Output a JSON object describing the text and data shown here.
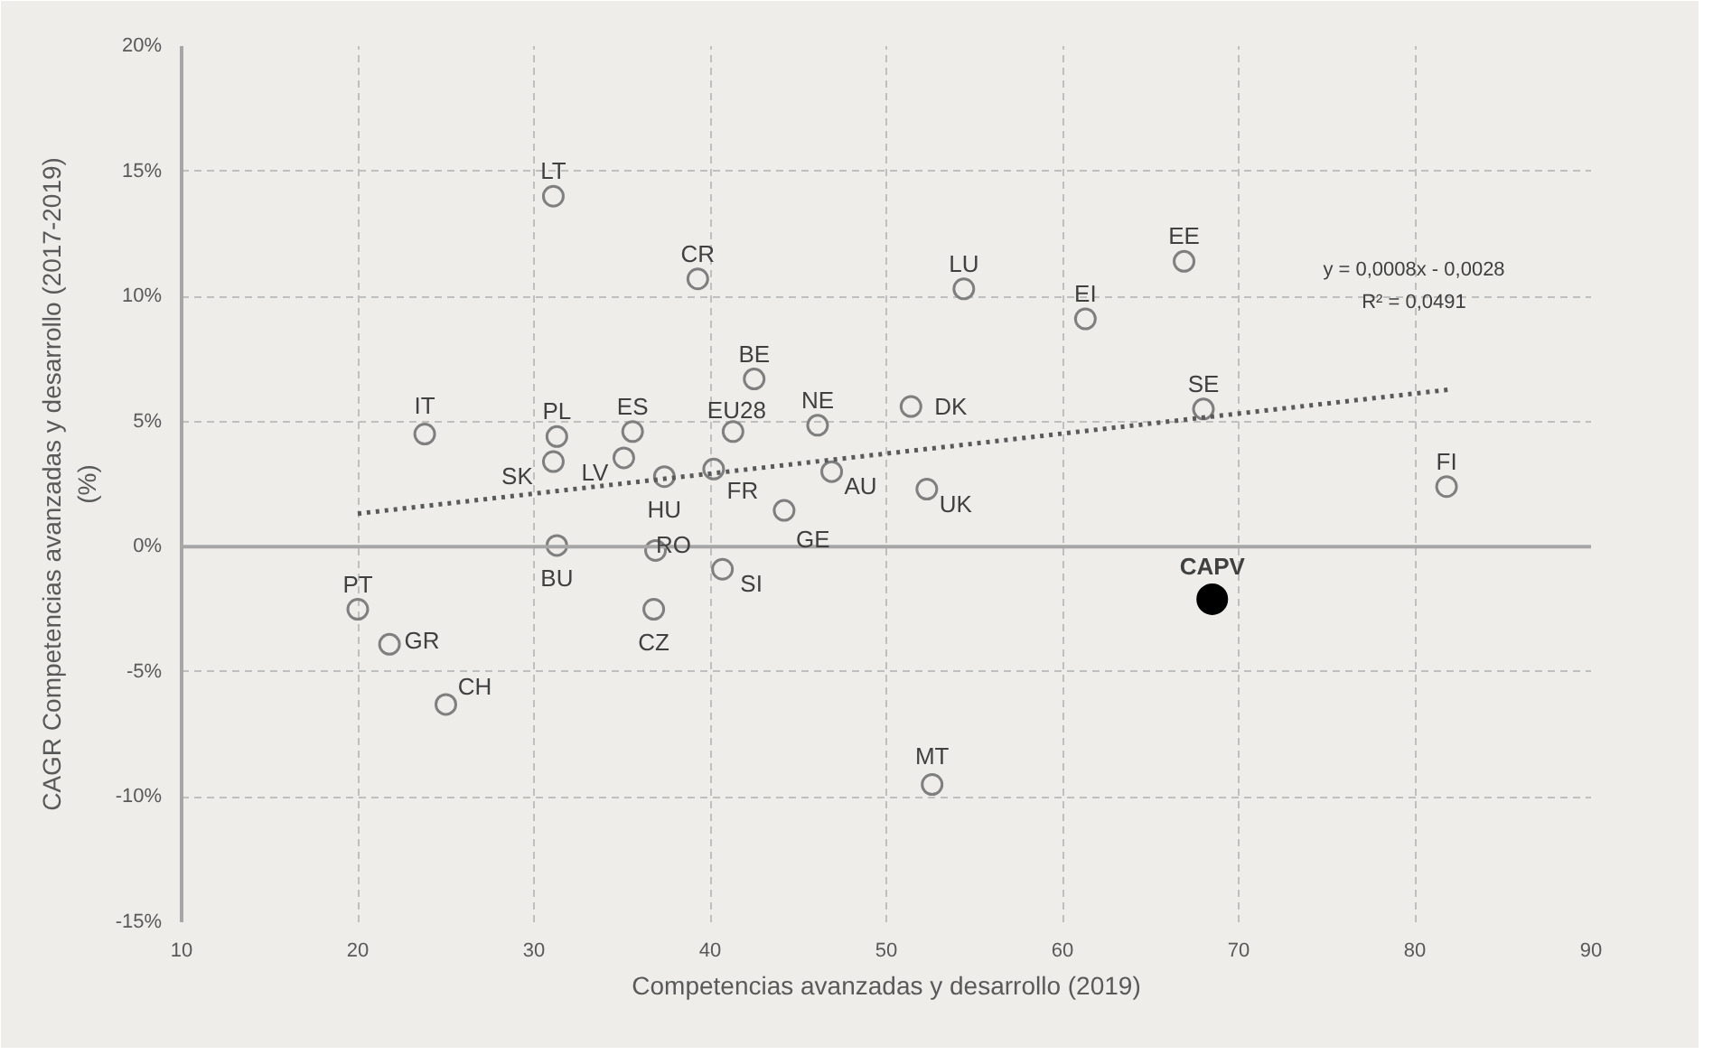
{
  "chart_data": {
    "type": "scatter",
    "xlabel": "Competencias avanzadas y desarrollo (2019)",
    "ylabel": "CAGR Competencias avanzadas y desarrollo (2017-2019)\n(%)",
    "xlim": [
      10,
      90
    ],
    "xticks": [
      10,
      20,
      30,
      40,
      50,
      60,
      70,
      80,
      90
    ],
    "ylim": [
      -15,
      20
    ],
    "yticks": [
      {
        "value": -15,
        "label": "-15%"
      },
      {
        "value": -10,
        "label": "-10%"
      },
      {
        "value": -5,
        "label": "-5%"
      },
      {
        "value": 0,
        "label": "0%"
      },
      {
        "value": 5,
        "label": "5%"
      },
      {
        "value": 10,
        "label": "10%"
      },
      {
        "value": 15,
        "label": "15%"
      },
      {
        "value": 20,
        "label": "20%"
      }
    ],
    "grid": true,
    "marker": "circle",
    "series": [
      {
        "color": "#7f7f7f",
        "x": [
          31.1,
          39.3,
          54.4,
          61.3,
          66.9,
          42.5,
          46.1,
          51.4,
          68.0,
          81.8,
          46.9,
          52.3,
          44.2,
          23.8,
          31.3,
          35.6,
          31.1,
          35.1,
          37.4,
          41.3,
          40.2,
          31.3,
          36.9,
          40.7,
          36.8,
          20.0,
          21.8,
          25.0,
          52.6
        ],
        "values": [
          14.0,
          10.7,
          10.3,
          9.1,
          11.4,
          6.7,
          4.85,
          5.6,
          5.5,
          2.4,
          3.0,
          2.3,
          1.45,
          4.5,
          4.4,
          4.6,
          3.4,
          3.55,
          2.8,
          4.6,
          3.1,
          0.05,
          -0.15,
          -0.9,
          -2.5,
          -2.5,
          -3.9,
          -6.3,
          -9.5
        ]
      },
      {
        "color": "#000000",
        "x": [
          68.5
        ],
        "values": [
          -2.1
        ]
      },
      {
        "type": "line",
        "color": "#595959",
        "line_style": "dotted",
        "marker": "none",
        "x": [
          20,
          82
        ],
        "values": [
          1.32,
          6.28
        ]
      }
    ],
    "ref_lines": [
      {
        "axis": "y",
        "value": 0,
        "color": "#a6a6a6"
      }
    ],
    "annotations": [
      {
        "text": "LT",
        "x": 31.1,
        "y": 14.0
      },
      {
        "text": "CR",
        "x": 39.3,
        "y": 10.7
      },
      {
        "text": "LU",
        "x": 54.4,
        "y": 10.3
      },
      {
        "text": "EI",
        "x": 61.3,
        "y": 9.1
      },
      {
        "text": "EE",
        "x": 66.9,
        "y": 11.4
      },
      {
        "text": "BE",
        "x": 42.5,
        "y": 6.7
      },
      {
        "text": "NE",
        "x": 46.1,
        "y": 4.85
      },
      {
        "text": "DK",
        "x": 51.4,
        "y": 5.6
      },
      {
        "text": "SE",
        "x": 68.0,
        "y": 5.5
      },
      {
        "text": "FI",
        "x": 81.8,
        "y": 2.4
      },
      {
        "text": "AU",
        "x": 46.9,
        "y": 3.0
      },
      {
        "text": "UK",
        "x": 52.3,
        "y": 2.3
      },
      {
        "text": "GE",
        "x": 44.2,
        "y": 1.45
      },
      {
        "text": "IT",
        "x": 23.8,
        "y": 4.5
      },
      {
        "text": "PL",
        "x": 31.3,
        "y": 4.4
      },
      {
        "text": "ES",
        "x": 35.6,
        "y": 4.6
      },
      {
        "text": "SK",
        "x": 31.1,
        "y": 3.4
      },
      {
        "text": "LV",
        "x": 35.1,
        "y": 3.55
      },
      {
        "text": "HU",
        "x": 37.4,
        "y": 2.8
      },
      {
        "text": "EU28",
        "x": 41.3,
        "y": 4.6
      },
      {
        "text": "FR",
        "x": 40.2,
        "y": 3.1
      },
      {
        "text": "BU",
        "x": 31.3,
        "y": 0.05
      },
      {
        "text": "RO",
        "x": 36.9,
        "y": -0.15
      },
      {
        "text": "SI",
        "x": 40.7,
        "y": -0.9
      },
      {
        "text": "CZ",
        "x": 36.8,
        "y": -2.5
      },
      {
        "text": "PT",
        "x": 20.0,
        "y": -2.5
      },
      {
        "text": "GR",
        "x": 21.8,
        "y": -3.9
      },
      {
        "text": "CH",
        "x": 25.0,
        "y": -6.3
      },
      {
        "text": "MT",
        "x": 52.6,
        "y": -9.5
      },
      {
        "text": "CAPV",
        "x": 68.5,
        "y": -2.1
      },
      "y = 0,0008x - 0,0028",
      "R² = 0,0491"
    ]
  }
}
